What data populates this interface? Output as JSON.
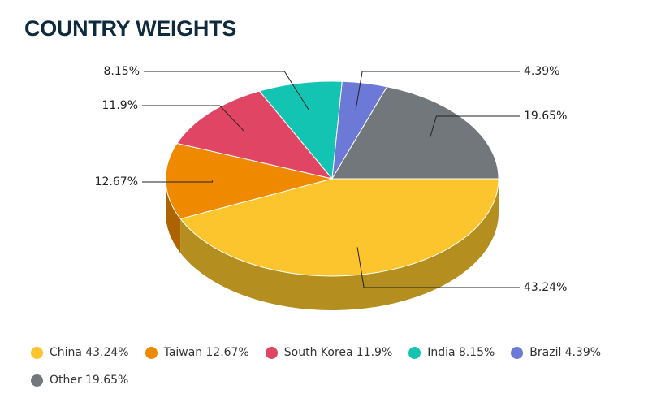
{
  "chart_data": {
    "type": "pie",
    "title": "COUNTRY WEIGHTS",
    "categories": [
      "China",
      "Taiwan",
      "South Korea",
      "India",
      "Brazil",
      "Other"
    ],
    "values": [
      43.24,
      12.67,
      11.9,
      8.15,
      4.39,
      19.65
    ],
    "value_labels": [
      "43.24%",
      "12.67%",
      "11.9%",
      "8.15%",
      "4.39%",
      "19.65%"
    ],
    "colors": [
      "#fcc52d",
      "#ef8a00",
      "#e14564",
      "#12c4b1",
      "#6d79d7",
      "#72777b"
    ],
    "legend": "bottom"
  }
}
